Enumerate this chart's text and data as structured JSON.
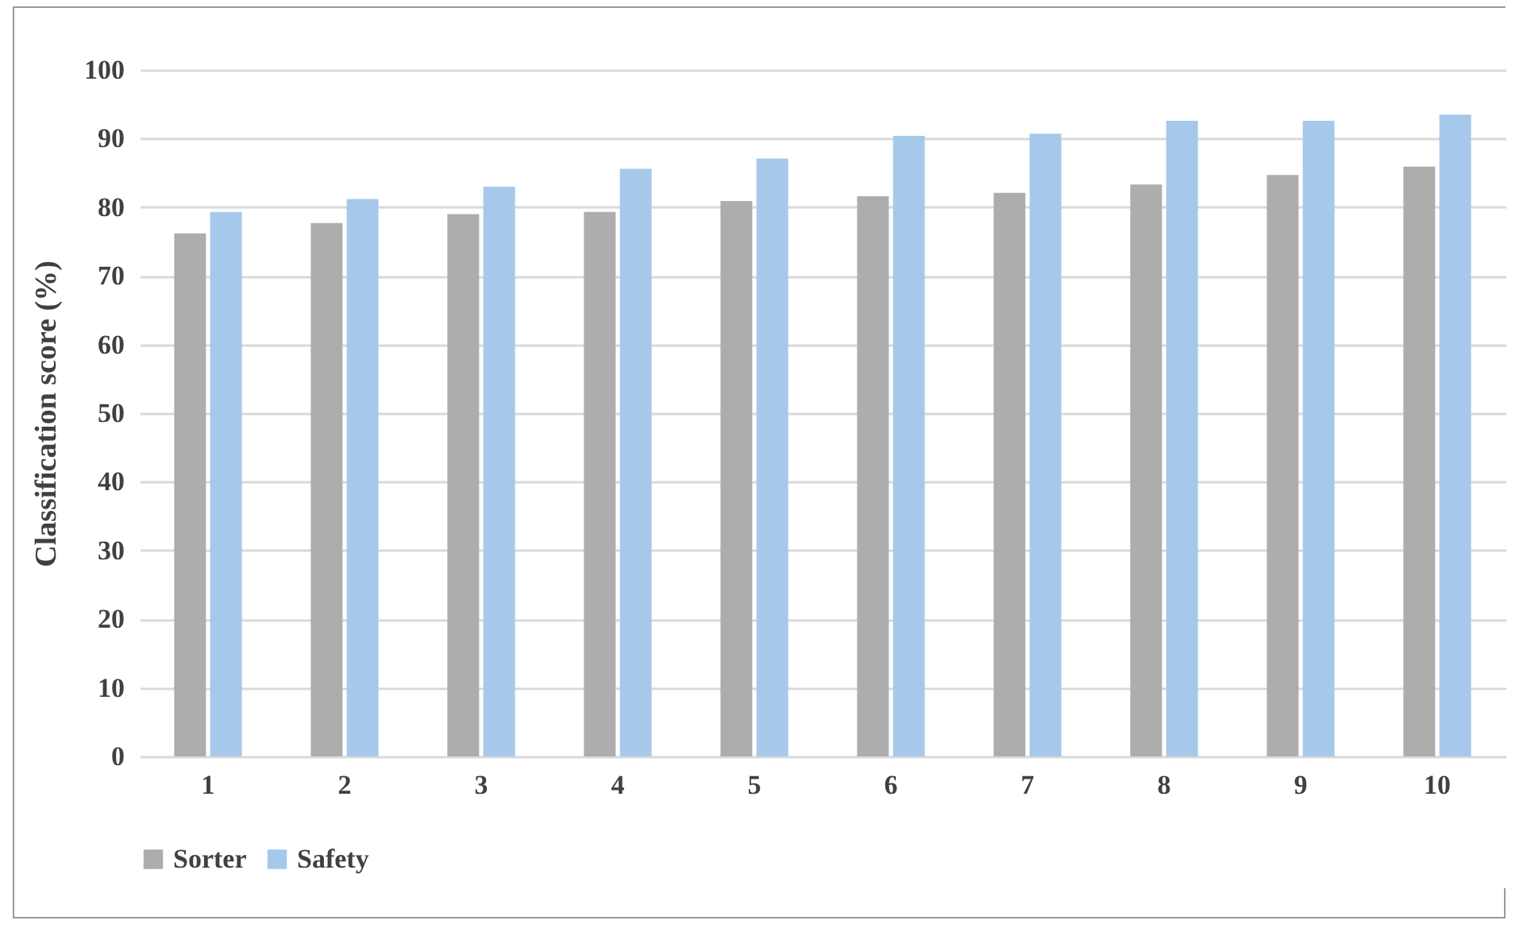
{
  "chart_data": {
    "type": "bar",
    "ylabel": "Classification score (%)",
    "categories": [
      "1",
      "2",
      "3",
      "4",
      "5",
      "6",
      "7",
      "8",
      "9",
      "10"
    ],
    "series": [
      {
        "name": "Sorter",
        "color": "#adadad",
        "values": [
          76.2,
          77.7,
          79.0,
          79.3,
          80.9,
          81.6,
          82.1,
          83.3,
          84.7,
          85.9
        ]
      },
      {
        "name": "Safety",
        "color": "#a6c9eb",
        "values": [
          79.3,
          81.2,
          83.0,
          85.6,
          87.1,
          90.4,
          90.7,
          92.6,
          92.6,
          93.5
        ]
      }
    ],
    "ylim": [
      0,
      100
    ],
    "yticks": [
      0,
      10,
      20,
      30,
      40,
      50,
      60,
      70,
      80,
      90,
      100
    ],
    "grid": "y",
    "legend": "bottom"
  }
}
